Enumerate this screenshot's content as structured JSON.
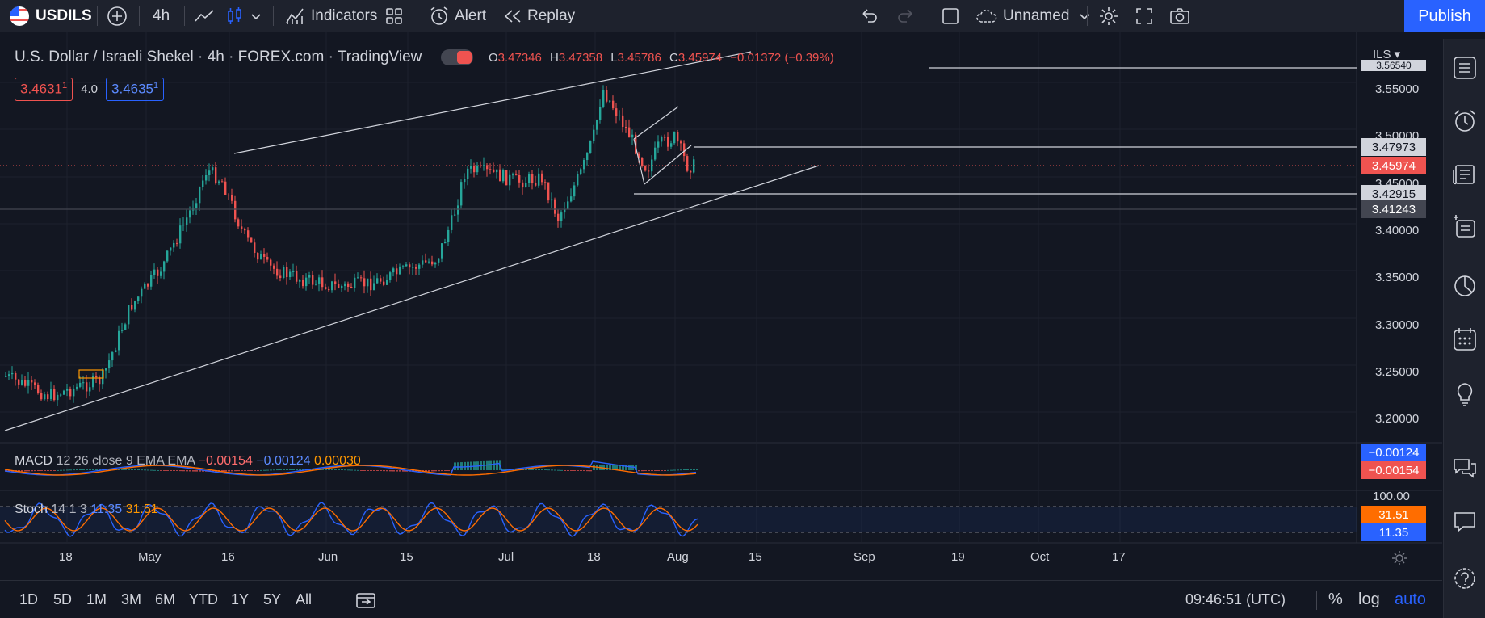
{
  "toolbar": {
    "symbol": "USDILS",
    "interval": "4h",
    "indicators_label": "Indicators",
    "alert_label": "Alert",
    "replay_label": "Replay",
    "layout_name": "Unnamed",
    "publish_label": "Publish"
  },
  "legend": {
    "title": "U.S. Dollar / Israeli Shekel",
    "interval": "4h",
    "exchange": "FOREX.com",
    "source": "TradingView",
    "o_label": "O",
    "o_value": "3.47346",
    "h_label": "H",
    "h_value": "3.47358",
    "l_label": "L",
    "l_value": "3.45786",
    "c_label": "C",
    "c_value": "3.45974",
    "change": "−0.01372 (−0.39%)",
    "bid": "3.4631",
    "bid_sup": "1",
    "spread": "4.0",
    "ask": "3.4635",
    "ask_sup": "1"
  },
  "currency": "ILS",
  "price_axis": {
    "ticks": [
      "3.55000",
      "3.50000",
      "3.45000",
      "3.40000",
      "3.35000",
      "3.30000",
      "3.25000",
      "3.20000"
    ],
    "top_partial": "3.56540",
    "labels": {
      "line1": "3.47973",
      "current": "3.45974",
      "line2": "3.42915",
      "line3": "3.41243"
    }
  },
  "macd": {
    "label": "MACD",
    "params": "12 26 close 9 EMA EMA",
    "v1": "−0.00154",
    "v2": "−0.00124",
    "v3": "0.00030",
    "axis_top": "−0.00124",
    "axis_bottom": "−0.00154"
  },
  "stoch": {
    "label": "Stoch",
    "params": "14 1 3",
    "k": "11.35",
    "d": "31.51",
    "axis_100": "100.00",
    "axis_d": "31.51",
    "axis_k": "11.35"
  },
  "time_axis": [
    "18",
    "May",
    "16",
    "Jun",
    "15",
    "Jul",
    "18",
    "Aug",
    "15",
    "Sep",
    "19",
    "Oct",
    "17"
  ],
  "ranges": [
    "1D",
    "5D",
    "1M",
    "3M",
    "6M",
    "YTD",
    "1Y",
    "5Y",
    "All"
  ],
  "clock": "09:46:51 (UTC)",
  "scale_options": {
    "percent": "%",
    "log": "log",
    "auto": "auto"
  },
  "colors": {
    "background": "#131722",
    "accent": "#2962ff",
    "up": "#26a69a",
    "down": "#ef5350",
    "macd_line": "#2962ff",
    "signal_line": "#ff6d00"
  }
}
